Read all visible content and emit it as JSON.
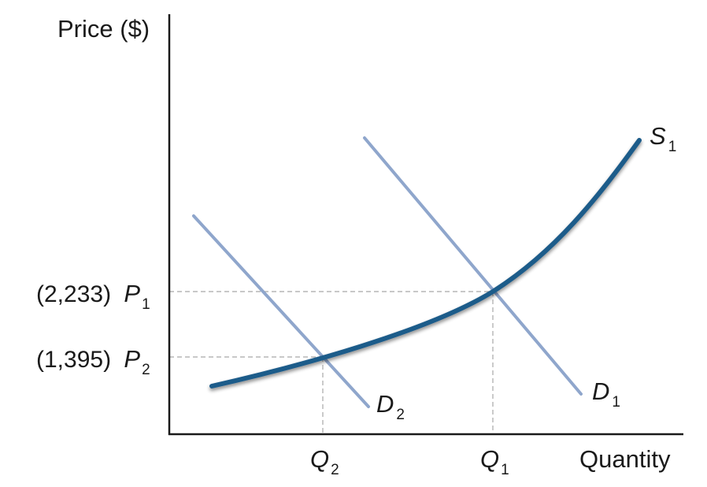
{
  "axes": {
    "y_label": "Price ($)",
    "x_label": "Quantity"
  },
  "prices": [
    {
      "value": "(2,233)",
      "symbol": "P",
      "subscript": "1"
    },
    {
      "value": "(1,395)",
      "symbol": "P",
      "subscript": "2"
    }
  ],
  "quantities": [
    {
      "symbol": "Q",
      "subscript": "2"
    },
    {
      "symbol": "Q",
      "subscript": "1"
    }
  ],
  "curves": {
    "supply": {
      "symbol": "S",
      "subscript": "1"
    },
    "demand_1": {
      "symbol": "D",
      "subscript": "1"
    },
    "demand_2": {
      "symbol": "D",
      "subscript": "2"
    }
  },
  "colors": {
    "supply": "#1f5b8a",
    "demand": "#8fa6cc",
    "guides": "#a8a8a8",
    "axes": "#1a1a1a"
  }
}
